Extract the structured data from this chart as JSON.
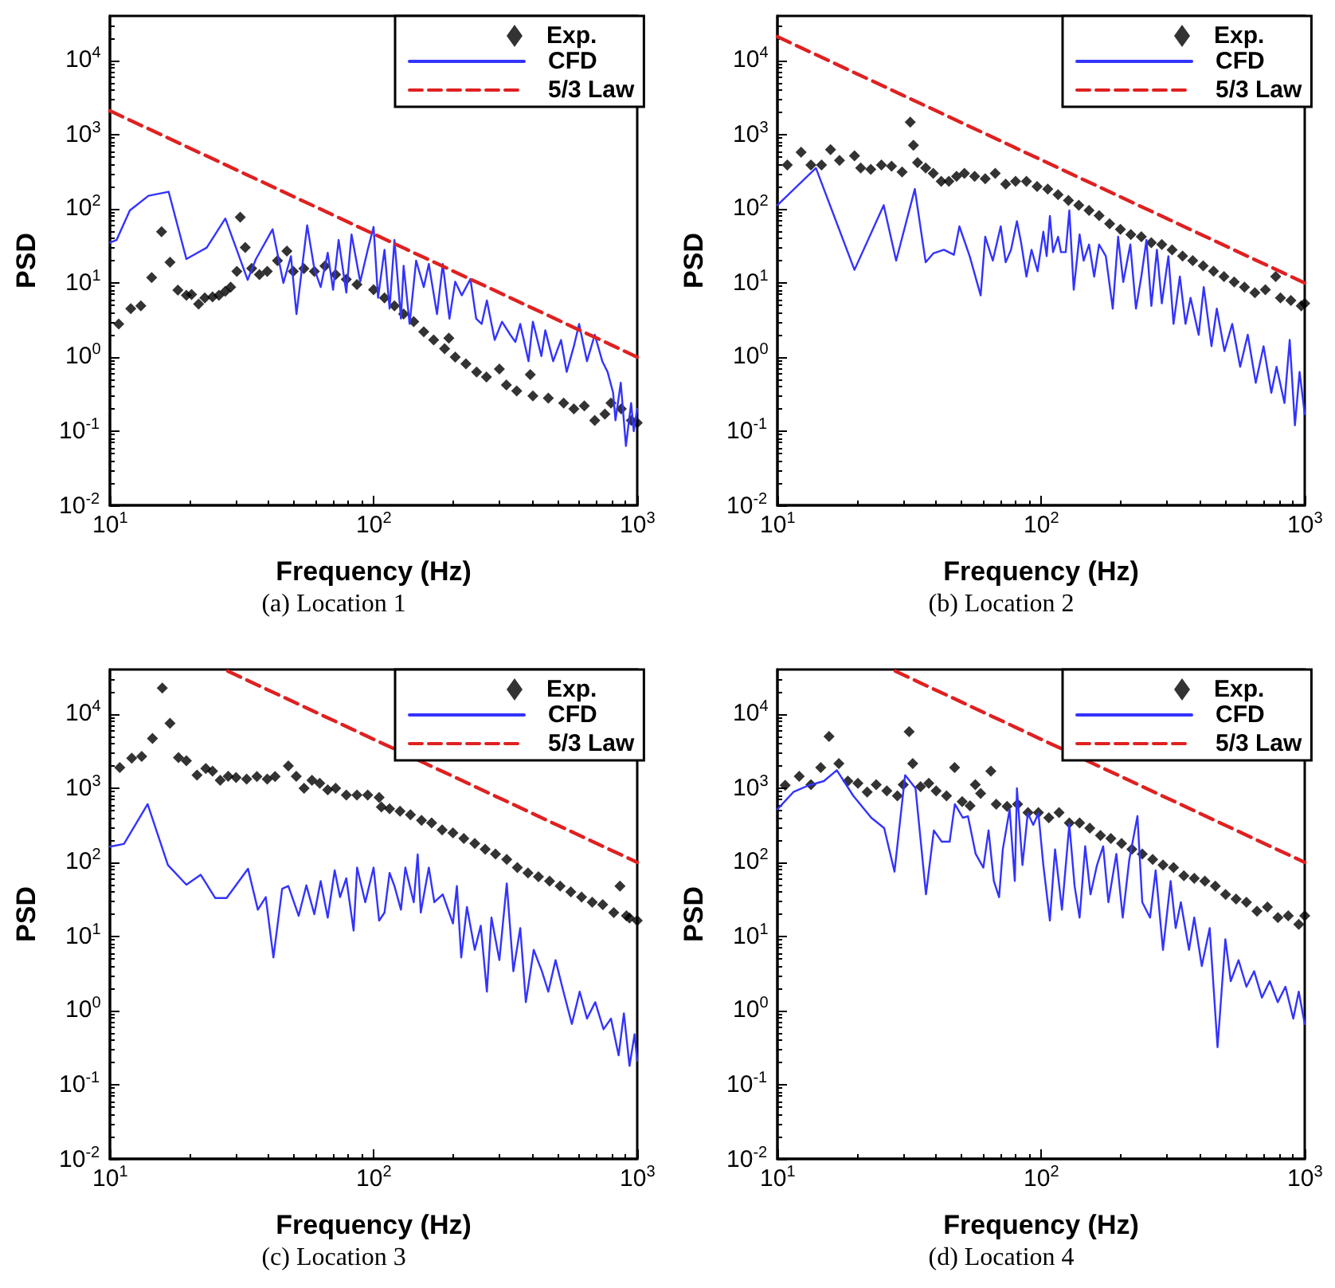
{
  "chart_data": [
    {
      "type": "line",
      "title": "(a) Location 1",
      "xlabel": "Frequency (Hz)",
      "ylabel": "PSD",
      "log": "xy",
      "legend": "top right",
      "xlim": [
        10,
        1000
      ],
      "ylim": [
        0.01,
        40000
      ],
      "xticks": [
        {
          "value": 10,
          "label": "10$^{1}$"
        },
        {
          "value": 100,
          "label": "10$^{2}$"
        },
        {
          "value": 1000,
          "label": "10$^{3}$"
        }
      ],
      "yticks": [
        {
          "value": 0.01,
          "label": "10$^{-2}$"
        },
        {
          "value": 0.1,
          "label": "10$^{-1}$"
        },
        {
          "value": 1,
          "label": "10$^{0}$"
        },
        {
          "value": 10,
          "label": "10$^{1}$"
        },
        {
          "value": 100,
          "label": "10$^{2}$"
        },
        {
          "value": 1000,
          "label": "10$^{3}$"
        },
        {
          "value": 10000,
          "label": "10$^{4}$"
        }
      ],
      "series": [
        {
          "name": "Exp.",
          "type": "scatter",
          "marker": "diamond",
          "color": "#000000",
          "x": [
            10.8,
            12,
            13.1,
            14.4,
            15.7,
            16.9,
            18.1,
            19.5,
            20.4,
            21.7,
            22.9,
            24.5,
            25.9,
            27.4,
            28.7,
            30.3,
            31.2,
            32.6,
            34.5,
            36.9,
            39.5,
            43.2,
            46.9,
            49.6,
            54.4,
            59.6,
            65.4,
            71.8,
            78.8,
            86.5,
            100,
            110,
            120,
            130,
            142,
            155,
            169,
            186,
            193,
            204,
            224,
            246,
            268,
            300,
            319,
            349,
            393,
            402,
            460,
            526,
            575,
            630,
            690,
            754,
            795,
            870,
            950,
            1000
          ],
          "values": [
            2.8,
            4.5,
            4.9,
            11.8,
            49,
            19,
            8,
            6.8,
            7,
            5.2,
            6.3,
            6.5,
            6.8,
            7.7,
            8.8,
            14.3,
            77,
            30,
            15.7,
            13,
            14.3,
            20,
            27,
            14.3,
            15.6,
            14.3,
            16.9,
            13,
            11.2,
            9.5,
            8.1,
            6.3,
            4.9,
            3.8,
            3,
            2.2,
            1.7,
            1.3,
            1.8,
            1,
            0.81,
            0.63,
            0.54,
            0.69,
            0.42,
            0.35,
            0.58,
            0.3,
            0.28,
            0.24,
            0.2,
            0.22,
            0.14,
            0.17,
            0.24,
            0.2,
            0.14,
            0.13
          ]
        },
        {
          "name": "CFD",
          "type": "line",
          "marker": "none",
          "color": "#3333ff",
          "x": [
            10,
            10.6,
            11.9,
            14,
            16.7,
            19.5,
            23.3,
            27.4,
            33.3,
            35.8,
            41.4,
            45.5,
            48.6,
            51,
            56,
            59.6,
            63,
            67,
            70.2,
            73.7,
            78.8,
            82.5,
            89,
            95,
            100,
            104,
            110,
            115,
            120,
            127,
            130,
            137,
            145,
            155,
            162,
            174,
            183,
            194,
            204,
            216,
            233,
            245,
            257,
            269,
            288,
            307,
            330,
            345,
            360,
            387,
            402,
            433,
            448,
            480,
            514,
            540,
            575,
            602,
            645,
            690,
            737,
            772,
            810,
            827,
            866,
            906,
            948,
            970,
            1000
          ],
          "values": [
            35,
            38,
            95,
            150,
            170,
            21,
            30,
            74,
            11,
            21,
            53,
            10,
            23,
            3.8,
            60,
            15.5,
            8.8,
            25.5,
            8.1,
            38,
            7.4,
            45,
            10.4,
            28,
            57,
            6.3,
            28,
            4.5,
            38,
            3.3,
            17,
            2.8,
            20,
            8.8,
            18,
            3.8,
            18,
            3.3,
            10.4,
            6.8,
            11.3,
            3.3,
            2.8,
            5.8,
            1.7,
            3,
            2,
            1.6,
            2.8,
            0.88,
            3,
            1.03,
            2.3,
            0.88,
            1.7,
            0.63,
            1.4,
            2.8,
            0.88,
            2,
            0.88,
            0.63,
            0.33,
            0.14,
            0.45,
            0.063,
            0.24,
            0.1,
            0.2
          ]
        },
        {
          "name": "5/3 Law",
          "type": "line",
          "marker": "none",
          "line_style": "dashed",
          "color": "#e02020",
          "x": [
            10,
            1000
          ],
          "values": [
            2100,
            1
          ]
        }
      ]
    },
    {
      "type": "line",
      "title": "(b) Location 2",
      "xlabel": "Frequency (Hz)",
      "ylabel": "PSD",
      "log": "xy",
      "legend": "top right",
      "xlim": [
        10,
        1000
      ],
      "ylim": [
        0.01,
        40000
      ],
      "xticks": [
        {
          "value": 10,
          "label": "10$^{1}$"
        },
        {
          "value": 100,
          "label": "10$^{2}$"
        },
        {
          "value": 1000,
          "label": "10$^{3}$"
        }
      ],
      "yticks": [
        {
          "value": 0.01,
          "label": "10$^{-2}$"
        },
        {
          "value": 0.1,
          "label": "10$^{-1}$"
        },
        {
          "value": 1,
          "label": "10$^{0}$"
        },
        {
          "value": 10,
          "label": "10$^{1}$"
        },
        {
          "value": 100,
          "label": "10$^{2}$"
        },
        {
          "value": 1000,
          "label": "10$^{3}$"
        },
        {
          "value": 10000,
          "label": "10$^{4}$"
        }
      ],
      "series": [
        {
          "name": "Exp.",
          "type": "scatter",
          "marker": "diamond",
          "color": "#000000",
          "x": [
            10.9,
            12.3,
            13.4,
            14.7,
            15.9,
            17.2,
            19.6,
            20.7,
            22.6,
            24.8,
            27.1,
            29.7,
            31.9,
            32.8,
            34,
            36.5,
            39,
            41.8,
            44.7,
            47.8,
            51.2,
            56,
            61.4,
            67,
            73.4,
            80,
            88,
            96.6,
            106,
            116,
            127,
            139,
            152,
            166,
            182,
            200,
            219,
            240,
            262,
            287,
            314,
            344,
            376,
            412,
            451,
            494,
            540,
            591,
            647,
            709,
            776,
            809,
            886,
            970,
            1000
          ],
          "values": [
            390,
            580,
            390,
            390,
            630,
            450,
            520,
            355,
            340,
            390,
            375,
            315,
            1480,
            720,
            420,
            355,
            300,
            235,
            235,
            275,
            300,
            275,
            255,
            300,
            215,
            235,
            235,
            200,
            185,
            155,
            130,
            112,
            95,
            81,
            63,
            53,
            45,
            42,
            35,
            33,
            28,
            23,
            20,
            17,
            14.4,
            12.2,
            10.3,
            8.8,
            7.4,
            8.1,
            12.2,
            6.3,
            5.8,
            4.9,
            5.3
          ]
        },
        {
          "name": "CFD",
          "type": "line",
          "marker": "none",
          "color": "#3333ff",
          "x": [
            10,
            14,
            19.6,
            25.3,
            28.2,
            33.2,
            36.5,
            39,
            42.8,
            46.7,
            49,
            53.6,
            59,
            61.4,
            65.6,
            70.3,
            73.4,
            76.9,
            81,
            84,
            88,
            92,
            97,
            102,
            105,
            108,
            111,
            116,
            119,
            124,
            128,
            133,
            140,
            145,
            152,
            159,
            166,
            176,
            187,
            196,
            205,
            218,
            229,
            240,
            251,
            262,
            275,
            287,
            304,
            318,
            336,
            353,
            369,
            396,
            414,
            443,
            464,
            496,
            531,
            569,
            608,
            652,
            698,
            747,
            782,
            838,
            877,
            918,
            956,
            1000
          ],
          "values": [
            112,
            355,
            15,
            112,
            20,
            185,
            19,
            25,
            28,
            24,
            58,
            23,
            6.8,
            42,
            20,
            58,
            19,
            28,
            68,
            35,
            12.2,
            28,
            14.4,
            49,
            23,
            80,
            26,
            42,
            26,
            26,
            95,
            8.1,
            45,
            20,
            33,
            12.2,
            33,
            23,
            4.5,
            42,
            10.3,
            33,
            4.5,
            12.2,
            38,
            4.9,
            28,
            5.3,
            23,
            2.8,
            12.2,
            2.8,
            6.3,
            2,
            8.8,
            1.4,
            4.5,
            1.2,
            2.8,
            0.74,
            2,
            0.45,
            1.4,
            0.33,
            0.74,
            0.24,
            1.7,
            0.12,
            0.63,
            0.17
          ]
        },
        {
          "name": "5/3 Law",
          "type": "line",
          "marker": "none",
          "line_style": "dashed",
          "color": "#e02020",
          "x": [
            10,
            1000
          ],
          "values": [
            21000,
            10
          ]
        }
      ]
    },
    {
      "type": "line",
      "title": "(c) Location 3",
      "xlabel": "Frequency (Hz)",
      "ylabel": "PSD",
      "log": "xy",
      "legend": "top right",
      "xlim": [
        10,
        1000
      ],
      "ylim": [
        0.01,
        40000
      ],
      "xticks": [
        {
          "value": 10,
          "label": "10$^{1}$"
        },
        {
          "value": 100,
          "label": "10$^{2}$"
        },
        {
          "value": 1000,
          "label": "10$^{3}$"
        }
      ],
      "yticks": [
        {
          "value": 0.01,
          "label": "10$^{-2}$"
        },
        {
          "value": 0.1,
          "label": "10$^{-1}$"
        },
        {
          "value": 1,
          "label": "10$^{0}$"
        },
        {
          "value": 10,
          "label": "10$^{1}$"
        },
        {
          "value": 100,
          "label": "10$^{2}$"
        },
        {
          "value": 1000,
          "label": "10$^{3}$"
        },
        {
          "value": 10000,
          "label": "10$^{4}$"
        }
      ],
      "series": [
        {
          "name": "Exp.",
          "type": "scatter",
          "marker": "diamond",
          "color": "#000000",
          "x": [
            10.9,
            12.1,
            13.2,
            14.5,
            15.8,
            16.9,
            18.2,
            19.5,
            21.4,
            23.1,
            24.5,
            26.2,
            28.1,
            30.1,
            33,
            36.1,
            39.5,
            42.3,
            47.5,
            50.9,
            54.5,
            58.4,
            62.5,
            67,
            71.8,
            78.8,
            86.5,
            95,
            105,
            107,
            115,
            126,
            138,
            152,
            166,
            182,
            200,
            220,
            242,
            265,
            290,
            320,
            351,
            385,
            422,
            465,
            510,
            560,
            615,
            675,
            740,
            815,
            860,
            910,
            935,
            1000
          ],
          "values": [
            1900,
            2550,
            2700,
            4700,
            22500,
            7500,
            2600,
            2350,
            1500,
            1850,
            1700,
            1280,
            1450,
            1400,
            1330,
            1440,
            1330,
            1440,
            2000,
            1450,
            1000,
            1280,
            1170,
            950,
            1000,
            810,
            810,
            810,
            750,
            560,
            530,
            490,
            440,
            370,
            340,
            275,
            250,
            210,
            180,
            150,
            130,
            110,
            85,
            72,
            64,
            56,
            48,
            40,
            34,
            29,
            27,
            21,
            48,
            19,
            17.8,
            16.4
          ]
        },
        {
          "name": "CFD",
          "type": "line",
          "marker": "none",
          "color": "#3333ff",
          "x": [
            10,
            11.3,
            13.9,
            16.6,
            19.5,
            22.1,
            25.1,
            27.7,
            33.4,
            36.4,
            39,
            41.7,
            45,
            47.5,
            52,
            55.6,
            59.6,
            63,
            67,
            71.2,
            74.6,
            78.8,
            84,
            86.6,
            93,
            100,
            105,
            110,
            115,
            120,
            127,
            132,
            142,
            147,
            151,
            162,
            170,
            183,
            200,
            207,
            215,
            226,
            242,
            255,
            269,
            280,
            300,
            320,
            339,
            360,
            378,
            405,
            435,
            460,
            490,
            525,
            565,
            605,
            645,
            693,
            745,
            795,
            850,
            890,
            935,
            977,
            1000
          ],
          "values": [
            163,
            177,
            610,
            92,
            50,
            68,
            33,
            33,
            82,
            23,
            34,
            5.2,
            44,
            48,
            19,
            49,
            20,
            56,
            18,
            78,
            34,
            61,
            12,
            85,
            29,
            85,
            16.4,
            21,
            72,
            48,
            23,
            85,
            29,
            128,
            21,
            85,
            29,
            37,
            15,
            48,
            5.2,
            25,
            6.6,
            14,
            1.8,
            18,
            4.8,
            52,
            3.4,
            13,
            1.3,
            6.6,
            3.4,
            1.8,
            4.8,
            1.8,
            0.66,
            1.8,
            0.78,
            1.3,
            0.56,
            0.78,
            0.25,
            0.92,
            0.18,
            0.48,
            0.21
          ]
        },
        {
          "name": "5/3 Law",
          "type": "line",
          "marker": "none",
          "line_style": "dashed",
          "color": "#e02020",
          "x": [
            28,
            1000
          ],
          "values": [
            38000,
            100
          ]
        }
      ]
    },
    {
      "type": "line",
      "title": "(d) Location 4",
      "xlabel": "Frequency (Hz)",
      "ylabel": "PSD",
      "log": "xy",
      "legend": "top right",
      "xlim": [
        10,
        1000
      ],
      "ylim": [
        0.01,
        40000
      ],
      "xticks": [
        {
          "value": 10,
          "label": "10$^{1}$"
        },
        {
          "value": 100,
          "label": "10$^{2}$"
        },
        {
          "value": 1000,
          "label": "10$^{3}$"
        }
      ],
      "yticks": [
        {
          "value": 0.01,
          "label": "10$^{-2}$"
        },
        {
          "value": 0.1,
          "label": "10$^{-1}$"
        },
        {
          "value": 1,
          "label": "10$^{0}$"
        },
        {
          "value": 10,
          "label": "10$^{1}$"
        },
        {
          "value": 100,
          "label": "10$^{2}$"
        },
        {
          "value": 1000,
          "label": "10$^{3}$"
        },
        {
          "value": 10000,
          "label": "10$^{4}$"
        }
      ],
      "series": [
        {
          "name": "Exp.",
          "type": "scatter",
          "marker": "diamond",
          "color": "#000000",
          "x": [
            10.7,
            12.1,
            13.4,
            14.6,
            15.7,
            17.1,
            18.5,
            20.2,
            21.9,
            23.7,
            26,
            28.5,
            30,
            31.6,
            32.6,
            34.9,
            37.5,
            40,
            43.8,
            47,
            50.2,
            53.8,
            56.3,
            59,
            64.5,
            67.6,
            74.3,
            81.5,
            89.2,
            97.7,
            107,
            117,
            128,
            140,
            153,
            168,
            184,
            202,
            221,
            242,
            265,
            290,
            318,
            348,
            381,
            418,
            458,
            501,
            549,
            601,
            659,
            722,
            791,
            866,
            949,
            1000
          ],
          "values": [
            1100,
            1450,
            1120,
            1900,
            5000,
            2150,
            1250,
            1170,
            890,
            1120,
            920,
            790,
            1120,
            5800,
            2150,
            1050,
            1170,
            920,
            790,
            1900,
            660,
            580,
            1120,
            850,
            1700,
            610,
            570,
            610,
            470,
            470,
            400,
            470,
            340,
            340,
            290,
            230,
            210,
            180,
            150,
            130,
            110,
            92,
            85,
            66,
            61,
            56,
            48,
            37,
            32,
            29,
            22,
            25,
            18,
            19,
            14.6,
            19
          ]
        },
        {
          "name": "CFD",
          "type": "line",
          "marker": "none",
          "color": "#3333ff",
          "x": [
            10,
            11.5,
            13.1,
            15,
            16.8,
            19.4,
            22.7,
            25.4,
            27.8,
            30.5,
            33.4,
            36.6,
            39.2,
            42,
            45,
            47.1,
            50.5,
            52.8,
            56.5,
            60.4,
            63.2,
            66.2,
            69.3,
            71.6,
            76,
            79.5,
            81,
            85,
            89,
            93.4,
            97.7,
            102,
            108,
            113,
            120,
            128,
            134,
            140,
            147,
            154,
            163,
            172,
            180,
            193,
            204,
            216,
            232,
            242,
            259,
            272,
            290,
            310,
            324,
            339,
            364,
            381,
            407,
            436,
            467,
            500,
            524,
            561,
            601,
            643,
            688,
            737,
            790,
            845,
            905,
            949,
            1000
          ],
          "values": [
            520,
            890,
            1090,
            1250,
            1750,
            790,
            400,
            290,
            75,
            1500,
            1000,
            37,
            270,
            190,
            190,
            610,
            400,
            420,
            130,
            85,
            270,
            56,
            34,
            150,
            520,
            56,
            1000,
            92,
            460,
            320,
            460,
            92,
            16.4,
            150,
            23,
            330,
            48,
            18,
            165,
            37,
            92,
            165,
            29,
            130,
            18,
            108,
            420,
            29,
            18,
            78,
            6.6,
            56,
            13,
            29,
            6.6,
            18,
            4,
            13,
            0.32,
            9.2,
            2.5,
            4.8,
            2.1,
            3.4,
            1.5,
            2.5,
            1.3,
            2.1,
            0.78,
            1.8,
            0.66
          ]
        },
        {
          "name": "5/3 Law",
          "type": "line",
          "marker": "none",
          "line_style": "dashed",
          "color": "#e02020",
          "x": [
            28,
            1000
          ],
          "values": [
            38000,
            100
          ]
        }
      ]
    }
  ]
}
